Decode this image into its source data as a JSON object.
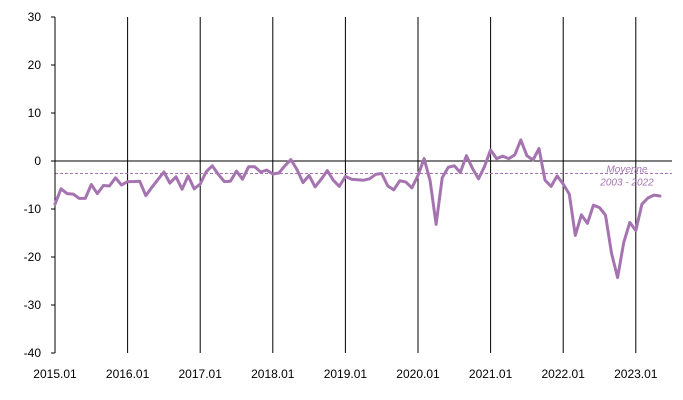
{
  "chart_data": {
    "type": "line",
    "title": "",
    "xlabel": "",
    "ylabel": "",
    "ylim": [
      -40,
      30
    ],
    "yticks": [
      "30",
      "20",
      "10",
      "0",
      "-10",
      "-20",
      "-30",
      "-40"
    ],
    "xticks": [
      "2015.01",
      "2016.01",
      "2017.01",
      "2018.01",
      "2019.01",
      "2020.01",
      "2021.01",
      "2022.01",
      "2023.01"
    ],
    "grid": "vertical lines at each year",
    "series": [
      {
        "color": "#a574b0",
        "values": [
          -9.0,
          -5.8,
          -6.8,
          -6.9,
          -7.8,
          -7.8,
          -4.9,
          -6.8,
          -5.1,
          -5.2,
          -3.5,
          -5.0,
          -4.3,
          -4.3,
          -4.2,
          -7.2,
          -5.5,
          -3.9,
          -2.3,
          -4.6,
          -3.3,
          -5.9,
          -3.1,
          -5.8,
          -4.8,
          -2.2,
          -1.0,
          -2.8,
          -4.3,
          -4.2,
          -2.1,
          -3.8,
          -1.2,
          -1.2,
          -2.3,
          -1.9,
          -2.7,
          -2.5,
          -1.0,
          0.3,
          -1.8,
          -4.5,
          -3.0,
          -5.4,
          -3.8,
          -2.0,
          -4.0,
          -5.3,
          -3.2,
          -3.8,
          -3.9,
          -4.0,
          -3.7,
          -2.8,
          -2.6,
          -5.2,
          -6.0,
          -4.1,
          -4.4,
          -5.6,
          -3.0,
          0.5,
          -4.1,
          -13.2,
          -3.5,
          -1.3,
          -1.0,
          -2.4,
          1.1,
          -1.5,
          -3.7,
          -1.1,
          2.3,
          0.5,
          1.0,
          0.5,
          1.3,
          4.4,
          1.1,
          0.2,
          2.6,
          -4.0,
          -5.3,
          -3.1,
          -4.8,
          -6.9,
          -15.5,
          -11.2,
          -13.0,
          -9.2,
          -9.7,
          -11.3,
          -19.3,
          -24.3,
          -17.0,
          -12.8,
          -14.5,
          -9.0,
          -7.7,
          -7.1,
          -7.3
        ]
      }
    ],
    "average": {
      "value": -2.6,
      "color": "#a574b0",
      "label_line1": "Moyenne",
      "label_line2": "2003 - 2022"
    }
  }
}
